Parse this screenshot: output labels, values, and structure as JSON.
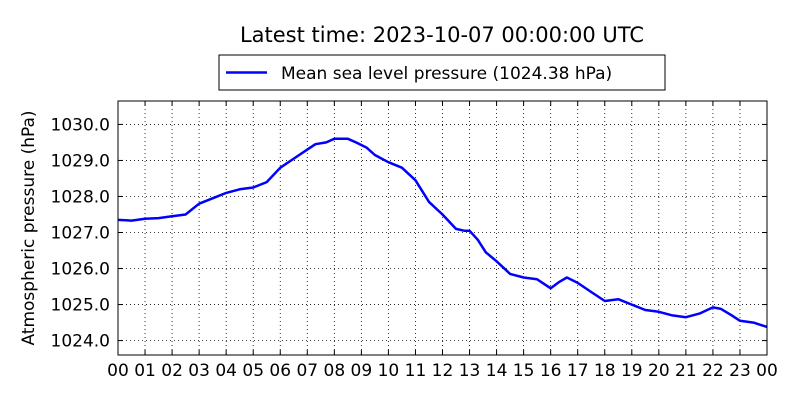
{
  "chart_data": {
    "type": "line",
    "title": "Latest time: 2023-10-07 00:00:00 UTC",
    "ylabel": "Atmospheric pressure (hPa)",
    "xlabel": "",
    "x_ticks": [
      "00",
      "01",
      "02",
      "03",
      "04",
      "05",
      "06",
      "07",
      "08",
      "09",
      "10",
      "11",
      "12",
      "13",
      "14",
      "15",
      "16",
      "17",
      "18",
      "19",
      "20",
      "21",
      "22",
      "23",
      "00"
    ],
    "y_ticks": [
      "1024.0",
      "1025.0",
      "1026.0",
      "1027.0",
      "1028.0",
      "1029.0",
      "1030.0"
    ],
    "ylim": [
      1023.6,
      1030.65
    ],
    "xlim": [
      0,
      24
    ],
    "grid": true,
    "legend_position": "top-center",
    "series": [
      {
        "name": "Mean sea level pressure (1024.38 hPa)",
        "color": "#0000ff",
        "x": [
          0,
          0.5,
          1,
          1.5,
          2,
          2.5,
          3,
          3.5,
          4,
          4.5,
          5,
          5.5,
          6,
          6.5,
          7,
          7.3,
          7.7,
          8,
          8.5,
          8.8,
          9.2,
          9.5,
          10,
          10.5,
          11,
          11.5,
          12,
          12.5,
          12.8,
          13,
          13.3,
          13.6,
          14,
          14.5,
          15,
          15.5,
          16,
          16.3,
          16.6,
          17,
          17.5,
          18,
          18.5,
          19,
          19.5,
          20,
          20.5,
          21,
          21.5,
          22,
          22.3,
          22.7,
          23,
          23.5,
          24
        ],
        "y": [
          1027.35,
          1027.33,
          1027.38,
          1027.4,
          1027.45,
          1027.5,
          1027.8,
          1027.95,
          1028.1,
          1028.2,
          1028.25,
          1028.4,
          1028.8,
          1029.05,
          1029.3,
          1029.45,
          1029.5,
          1029.6,
          1029.6,
          1029.5,
          1029.35,
          1029.15,
          1028.95,
          1028.8,
          1028.45,
          1027.85,
          1027.5,
          1027.1,
          1027.05,
          1027.05,
          1026.8,
          1026.45,
          1026.2,
          1025.85,
          1025.75,
          1025.7,
          1025.45,
          1025.62,
          1025.75,
          1025.6,
          1025.35,
          1025.1,
          1025.15,
          1025.0,
          1024.85,
          1024.8,
          1024.7,
          1024.65,
          1024.75,
          1024.92,
          1024.88,
          1024.7,
          1024.55,
          1024.5,
          1024.38
        ]
      }
    ]
  }
}
